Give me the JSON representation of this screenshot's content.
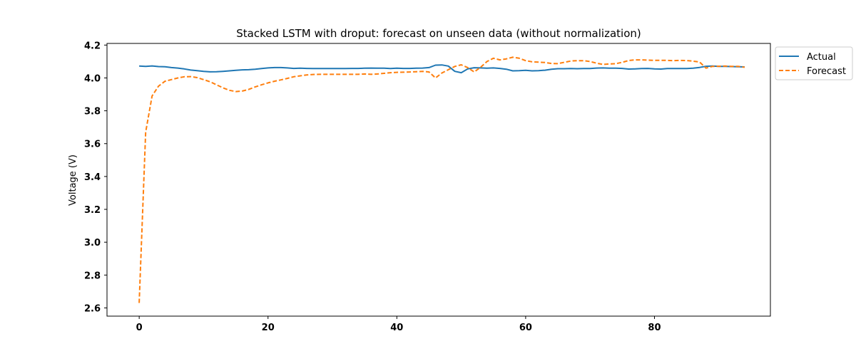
{
  "chart_data": {
    "type": "line",
    "title": "Stacked LSTM with droput: forecast on unseen data (without normalization)",
    "xlabel": "",
    "ylabel": "Voltage (V)",
    "xlim": [
      -5,
      98
    ],
    "ylim": [
      2.55,
      4.21
    ],
    "xticks": [
      "0",
      "20",
      "40",
      "60",
      "80"
    ],
    "yticks": [
      "2.6",
      "2.8",
      "3.0",
      "3.2",
      "3.4",
      "3.6",
      "3.8",
      "4.0",
      "4.2"
    ],
    "grid": false,
    "legend_position": "outside-top-right",
    "series": [
      {
        "name": "Actual",
        "color": "#1f77b4",
        "style": "solid",
        "x": [
          0,
          1,
          2,
          3,
          4,
          5,
          6,
          7,
          8,
          9,
          10,
          11,
          12,
          13,
          14,
          15,
          16,
          17,
          18,
          19,
          20,
          21,
          22,
          23,
          24,
          25,
          26,
          27,
          28,
          29,
          30,
          31,
          32,
          33,
          34,
          35,
          36,
          37,
          38,
          39,
          40,
          41,
          42,
          43,
          44,
          45,
          46,
          47,
          48,
          49,
          50,
          51,
          52,
          53,
          54,
          55,
          56,
          57,
          58,
          59,
          60,
          61,
          62,
          63,
          64,
          65,
          66,
          67,
          68,
          69,
          70,
          71,
          72,
          73,
          74,
          75,
          76,
          77,
          78,
          79,
          80,
          81,
          82,
          83,
          84,
          85,
          86,
          87,
          88,
          89,
          90,
          91,
          92,
          93,
          94
        ],
        "values": [
          4.072,
          4.07,
          4.073,
          4.069,
          4.068,
          4.063,
          4.06,
          4.055,
          4.048,
          4.044,
          4.04,
          4.037,
          4.038,
          4.04,
          4.043,
          4.046,
          4.049,
          4.05,
          4.053,
          4.057,
          4.061,
          4.063,
          4.063,
          4.061,
          4.058,
          4.059,
          4.058,
          4.057,
          4.057,
          4.057,
          4.057,
          4.057,
          4.057,
          4.058,
          4.058,
          4.059,
          4.06,
          4.059,
          4.059,
          4.057,
          4.059,
          4.058,
          4.058,
          4.059,
          4.06,
          4.063,
          4.078,
          4.079,
          4.072,
          4.04,
          4.032,
          4.055,
          4.062,
          4.061,
          4.059,
          4.061,
          4.058,
          4.053,
          4.043,
          4.044,
          4.046,
          4.043,
          4.044,
          4.047,
          4.053,
          4.056,
          4.056,
          4.057,
          4.056,
          4.057,
          4.057,
          4.06,
          4.061,
          4.059,
          4.059,
          4.058,
          4.054,
          4.055,
          4.057,
          4.058,
          4.055,
          4.054,
          4.057,
          4.057,
          4.057,
          4.057,
          4.059,
          4.064,
          4.071,
          4.072,
          4.07,
          4.07,
          4.069,
          4.068,
          4.067
        ]
      },
      {
        "name": "Forecast",
        "color": "#ff7f0e",
        "style": "dashed",
        "x": [
          0,
          1,
          2,
          3,
          4,
          5,
          6,
          7,
          8,
          9,
          10,
          11,
          12,
          13,
          14,
          15,
          16,
          17,
          18,
          19,
          20,
          21,
          22,
          23,
          24,
          25,
          26,
          27,
          28,
          29,
          30,
          31,
          32,
          33,
          34,
          35,
          36,
          37,
          38,
          39,
          40,
          41,
          42,
          43,
          44,
          45,
          46,
          47,
          48,
          49,
          50,
          51,
          52,
          53,
          54,
          55,
          56,
          57,
          58,
          59,
          60,
          61,
          62,
          63,
          64,
          65,
          66,
          67,
          68,
          69,
          70,
          71,
          72,
          73,
          74,
          75,
          76,
          77,
          78,
          79,
          80,
          81,
          82,
          83,
          84,
          85,
          86,
          87,
          88,
          89,
          90,
          91,
          92,
          93,
          94
        ],
        "values": [
          2.63,
          3.67,
          3.89,
          3.95,
          3.98,
          3.99,
          4.0,
          4.007,
          4.008,
          4.002,
          3.99,
          3.977,
          3.958,
          3.94,
          3.925,
          3.917,
          3.92,
          3.93,
          3.945,
          3.958,
          3.97,
          3.98,
          3.988,
          3.997,
          4.007,
          4.013,
          4.018,
          4.021,
          4.022,
          4.022,
          4.022,
          4.022,
          4.022,
          4.022,
          4.022,
          4.024,
          4.022,
          4.024,
          4.028,
          4.032,
          4.034,
          4.035,
          4.036,
          4.038,
          4.04,
          4.036,
          4.0,
          4.03,
          4.05,
          4.07,
          4.08,
          4.063,
          4.036,
          4.065,
          4.1,
          4.12,
          4.11,
          4.116,
          4.126,
          4.12,
          4.105,
          4.098,
          4.096,
          4.094,
          4.088,
          4.087,
          4.095,
          4.103,
          4.105,
          4.105,
          4.1,
          4.09,
          4.082,
          4.085,
          4.087,
          4.095,
          4.106,
          4.11,
          4.11,
          4.108,
          4.107,
          4.107,
          4.107,
          4.105,
          4.107,
          4.106,
          4.102,
          4.097,
          4.06,
          4.07,
          4.071,
          4.072,
          4.07,
          4.07,
          4.065
        ]
      }
    ]
  }
}
